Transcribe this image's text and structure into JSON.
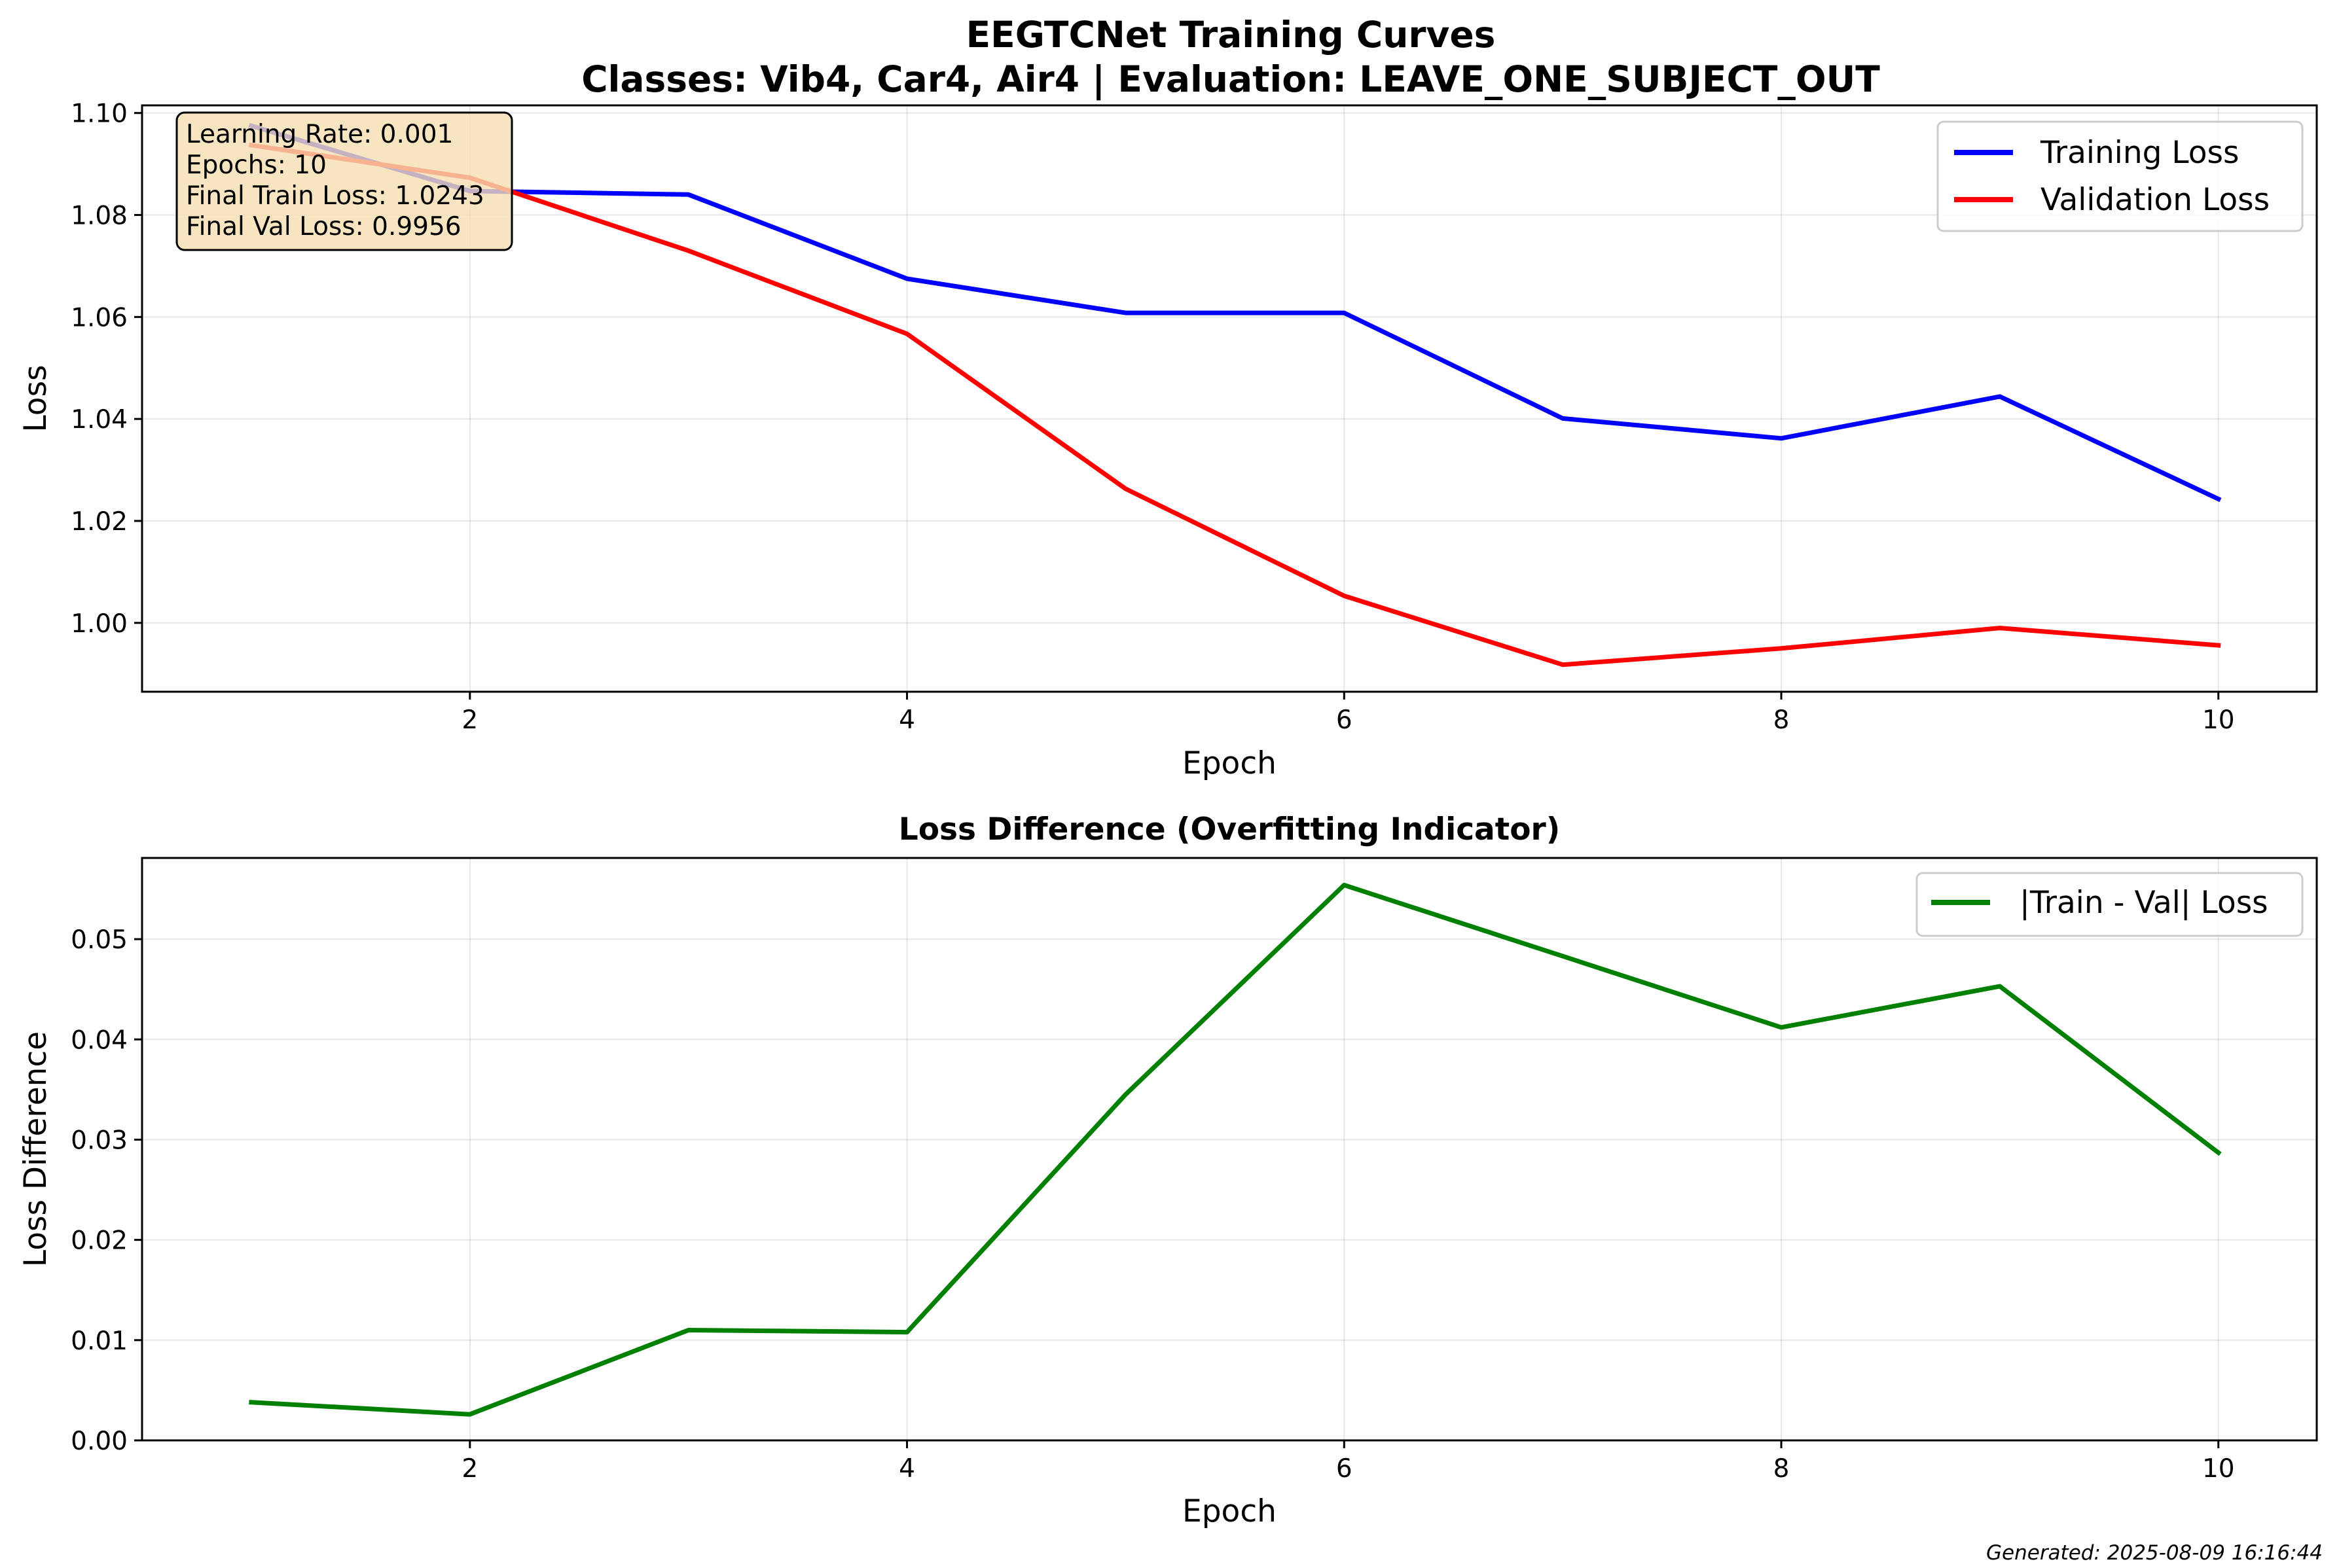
{
  "figure": {
    "title_line1": "EEGTCNet Training Curves",
    "title_line2": "Classes: Vib4, Car4, Air4 | Evaluation: LEAVE_ONE_SUBJECT_OUT",
    "footer": "Generated: 2025-08-09 16:16:44"
  },
  "chart_data": [
    {
      "type": "line",
      "title": "",
      "xlabel": "Epoch",
      "ylabel": "Loss",
      "xlim": [
        0.5,
        10.45
      ],
      "ylim": [
        0.9865,
        1.1015
      ],
      "xticks": [
        2,
        4,
        6,
        8,
        10
      ],
      "yticks": [
        1.0,
        1.02,
        1.04,
        1.06,
        1.08,
        1.1
      ],
      "ytick_labels": [
        "1.00",
        "1.02",
        "1.04",
        "1.06",
        "1.08",
        "1.10"
      ],
      "grid": true,
      "legend_position": "top-right",
      "x": [
        1,
        2,
        3,
        4,
        5,
        6,
        7,
        8,
        9,
        10
      ],
      "series": [
        {
          "name": "Training Loss",
          "color": "#0000ff",
          "values": [
            1.0975,
            1.0847,
            1.084,
            1.0675,
            1.0608,
            1.0608,
            1.0401,
            1.0362,
            1.0444,
            1.0243
          ]
        },
        {
          "name": "Validation Loss",
          "color": "#ff0000",
          "values": [
            1.0937,
            1.0873,
            1.073,
            1.0567,
            1.0263,
            1.0053,
            0.9918,
            0.995,
            0.999,
            0.9956
          ]
        }
      ],
      "annotation": {
        "lines": [
          "Learning Rate: 0.001",
          "Epochs: 10",
          "Final Train Loss: 1.0243",
          "Final Val Loss: 0.9956"
        ],
        "box_fill": "#f5deb3",
        "placement": "top-left"
      }
    },
    {
      "type": "line",
      "title": "Loss Difference (Overfitting Indicator)",
      "xlabel": "Epoch",
      "ylabel": "Loss Difference",
      "xlim": [
        0.5,
        10.45
      ],
      "ylim": [
        0.0,
        0.0581
      ],
      "xticks": [
        2,
        4,
        6,
        8,
        10
      ],
      "yticks": [
        0.0,
        0.01,
        0.02,
        0.03,
        0.04,
        0.05
      ],
      "ytick_labels": [
        "0.00",
        "0.01",
        "0.02",
        "0.03",
        "0.04",
        "0.05"
      ],
      "grid": true,
      "legend_position": "top-right",
      "x": [
        1,
        2,
        3,
        4,
        5,
        6,
        7,
        8,
        9,
        10
      ],
      "series": [
        {
          "name": "|Train - Val| Loss",
          "color": "#008000",
          "values": [
            0.0038,
            0.0026,
            0.011,
            0.0108,
            0.0345,
            0.0554,
            0.0483,
            0.0412,
            0.0453,
            0.0287
          ]
        }
      ]
    }
  ]
}
